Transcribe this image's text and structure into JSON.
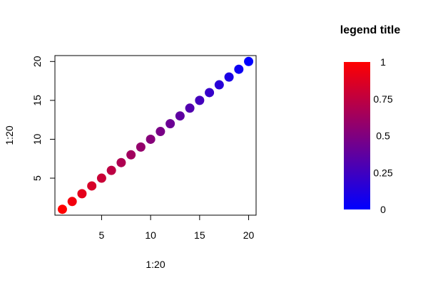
{
  "chart_data": {
    "type": "scatter",
    "xlabel": "1:20",
    "ylabel": "1:20",
    "xlim": [
      0.24,
      20.76
    ],
    "ylim": [
      0.24,
      20.76
    ],
    "x_ticks": [
      5,
      10,
      15,
      20
    ],
    "y_ticks": [
      5,
      10,
      15,
      20
    ],
    "x": [
      1,
      2,
      3,
      4,
      5,
      6,
      7,
      8,
      9,
      10,
      11,
      12,
      13,
      14,
      15,
      16,
      17,
      18,
      19,
      20
    ],
    "y": [
      1,
      2,
      3,
      4,
      5,
      6,
      7,
      8,
      9,
      10,
      11,
      12,
      13,
      14,
      15,
      16,
      17,
      18,
      19,
      20
    ],
    "color_gradient": {
      "from": "#ff0000",
      "to": "#0000ff"
    },
    "grid": false,
    "legend": {
      "title": "legend title",
      "placement": "right",
      "labels": [
        "1",
        "0.75",
        "0.5",
        "0.25",
        "0"
      ],
      "values": [
        1,
        0.75,
        0.5,
        0.25,
        0
      ],
      "color_high": "#ff0000",
      "color_low": "#0000ff"
    }
  }
}
